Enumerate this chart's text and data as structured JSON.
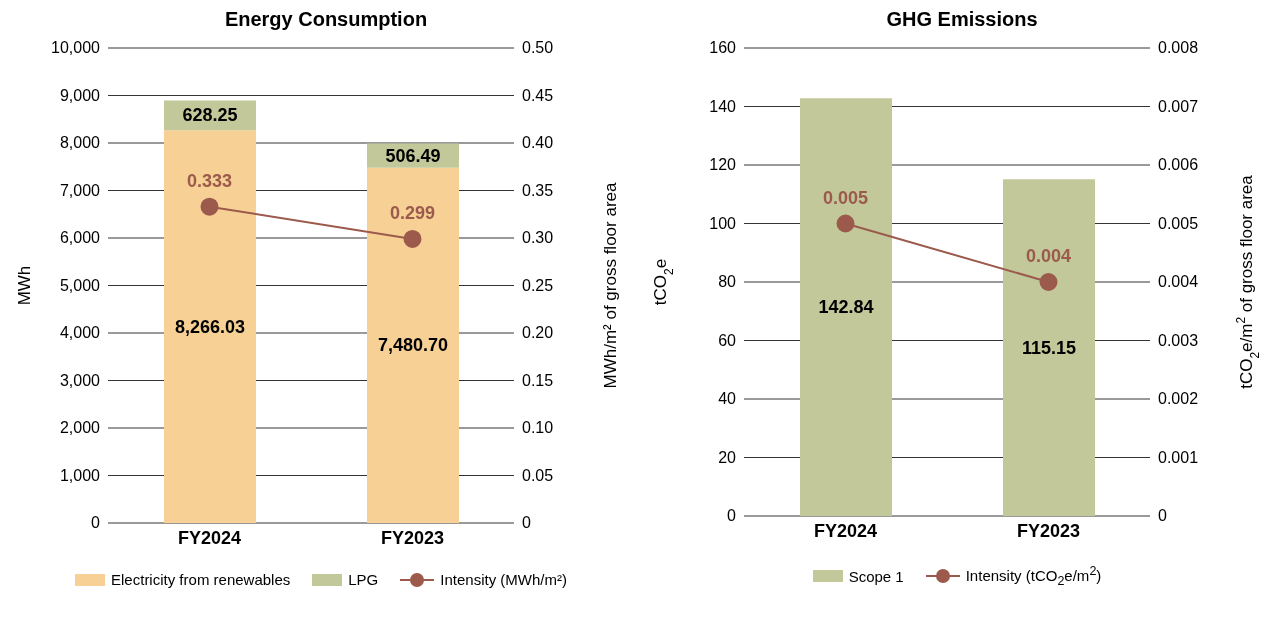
{
  "chart_data": [
    {
      "type": "bar",
      "title": "Energy Consumption",
      "categories": [
        "FY2024",
        "FY2023"
      ],
      "stacked": true,
      "series": [
        {
          "name": "Electricity from renewables",
          "color": "#f7d095",
          "values": [
            8266.03,
            7480.7
          ],
          "value_labels": [
            "8,266.03",
            "7,480.70"
          ]
        },
        {
          "name": "LPG",
          "color": "#c2c89a",
          "values": [
            628.25,
            506.49
          ],
          "value_labels": [
            "628.25",
            "506.49"
          ]
        },
        {
          "name": "Intensity (MWh/m²)",
          "type": "line",
          "axis": "y2",
          "color": "#9b5a4c",
          "marker": "circle",
          "values": [
            0.333,
            0.299
          ],
          "value_labels": [
            "0.333",
            "0.299"
          ]
        }
      ],
      "ylabel": "MWh",
      "y2label": "MWh/m² of gross floor area",
      "ylim": [
        0,
        10000
      ],
      "yticks": [
        0,
        {
          "value": 1000,
          "label": "1,000"
        },
        {
          "value": 2000,
          "label": "2,000"
        },
        {
          "value": 3000,
          "label": "3,000"
        },
        {
          "value": 4000,
          "label": "4,000"
        },
        {
          "value": 5000,
          "label": "5,000"
        },
        {
          "value": 6000,
          "label": "6,000"
        },
        {
          "value": 7000,
          "label": "7,000"
        },
        {
          "value": 8000,
          "label": "8,000"
        },
        {
          "value": 9000,
          "label": "9,000"
        },
        {
          "value": 10000,
          "label": "10,000"
        }
      ],
      "y2lim": [
        0,
        0.5
      ],
      "y2ticks": [
        0,
        {
          "value": 0.05,
          "label": "0.05"
        },
        {
          "value": 0.1,
          "label": "0.10"
        },
        {
          "value": 0.15,
          "label": "0.15"
        },
        {
          "value": 0.2,
          "label": "0.20"
        },
        {
          "value": 0.25,
          "label": "0.25"
        },
        {
          "value": 0.3,
          "label": "0.30"
        },
        {
          "value": 0.35,
          "label": "0.35"
        },
        {
          "value": 0.4,
          "label": "0.40"
        },
        {
          "value": 0.45,
          "label": "0.45"
        },
        {
          "value": 0.5,
          "label": "0.50"
        }
      ],
      "grid": "y",
      "legend": "bottom"
    },
    {
      "type": "bar",
      "title": "GHG Emissions",
      "categories": [
        "FY2024",
        "FY2023"
      ],
      "series": [
        {
          "name": "Scope 1",
          "color": "#c2c89a",
          "values": [
            142.84,
            115.15
          ],
          "value_labels": [
            "142.84",
            "115.15"
          ]
        },
        {
          "name": "Intensity (tCO$_{2}$e/m$^{2}$)",
          "type": "line",
          "axis": "y2",
          "color": "#9b5a4c",
          "marker": "circle",
          "values": [
            0.005,
            0.004
          ],
          "value_labels": [
            "0.005",
            "0.004"
          ]
        }
      ],
      "ylabel": "tCO$_{2}$e",
      "y2label": "tCO$_{2}$e/m$^{2}$ of gross floor area",
      "ylim": [
        0,
        160
      ],
      "yticks": [
        0,
        20,
        40,
        60,
        80,
        100,
        120,
        140,
        160
      ],
      "y2lim": [
        0,
        0.008
      ],
      "y2ticks": [
        0,
        0.001,
        0.002,
        0.003,
        0.004,
        0.005,
        0.006,
        0.007,
        0.008
      ],
      "grid": "y",
      "legend": "bottom"
    }
  ]
}
